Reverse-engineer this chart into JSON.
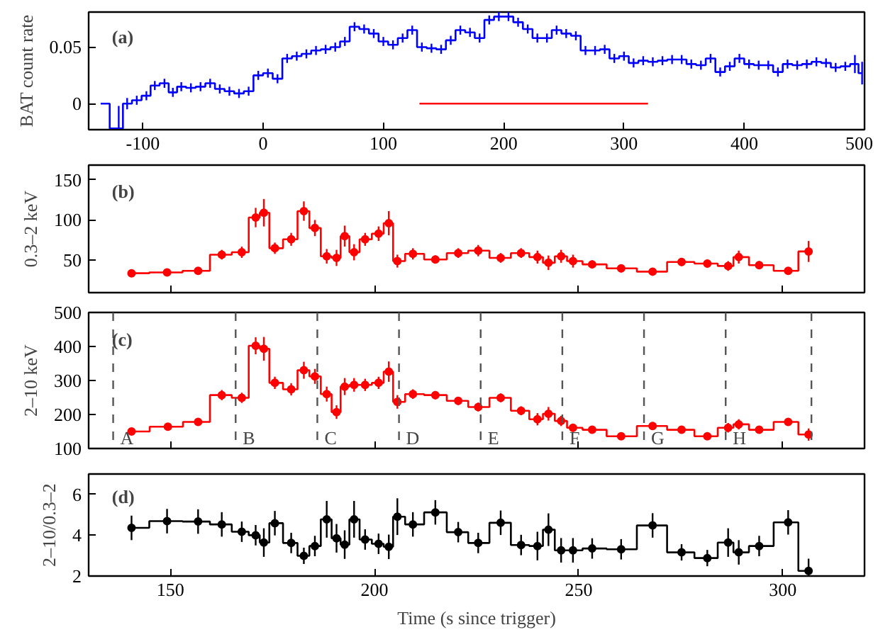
{
  "chart_data": [
    {
      "type": "step",
      "ylabel": "BAT count rate",
      "annotations": [
        "(a)"
      ],
      "marker": "none",
      "xlim": [
        -145,
        500
      ],
      "xticks": [
        -100,
        0,
        100,
        200,
        300,
        400,
        500
      ],
      "ylim": [
        -0.023,
        0.081
      ],
      "yticks": [
        0,
        0.05
      ],
      "x": [
        -135,
        -120,
        -113,
        -105,
        -97,
        -90,
        -82,
        -75,
        -68,
        -60,
        -52,
        -44,
        -36,
        -28,
        -20,
        -12,
        -4,
        4,
        12,
        20,
        28,
        36,
        44,
        52,
        60,
        68,
        76,
        84,
        92,
        100,
        108,
        116,
        124,
        132,
        140,
        148,
        156,
        164,
        172,
        180,
        188,
        196,
        204,
        212,
        220,
        228,
        236,
        244,
        252,
        260,
        268,
        276,
        284,
        292,
        300,
        308,
        316,
        324,
        332,
        340,
        348,
        356,
        364,
        372,
        380,
        388,
        396,
        404,
        412,
        420,
        428,
        436,
        444,
        452,
        460,
        468,
        476,
        484,
        492,
        498
      ],
      "series": [
        {
          "color": "#0000ff",
          "values": [
            0,
            -0.022,
            0,
            0.003,
            0.007,
            0.016,
            0.018,
            0.01,
            0.015,
            0.014,
            0.015,
            0.018,
            0.013,
            0.011,
            0.009,
            0.011,
            0.025,
            0.027,
            0.022,
            0.04,
            0.042,
            0.044,
            0.047,
            0.048,
            0.05,
            0.055,
            0.068,
            0.066,
            0.062,
            0.055,
            0.052,
            0.058,
            0.065,
            0.05,
            0.049,
            0.048,
            0.056,
            0.065,
            0.063,
            0.058,
            0.074,
            0.077,
            0.077,
            0.072,
            0.066,
            0.058,
            0.058,
            0.065,
            0.062,
            0.06,
            0.047,
            0.047,
            0.048,
            0.04,
            0.042,
            0.036,
            0.038,
            0.037,
            0.038,
            0.039,
            0.039,
            0.035,
            0.034,
            0.04,
            0.028,
            0.033,
            0.04,
            0.035,
            0.034,
            0.034,
            0.028,
            0.035,
            0.034,
            0.035,
            0.037,
            0.036,
            0.032,
            0.033,
            0.035,
            0.027
          ],
          "errors": [
            null,
            0.02,
            0.005,
            0.004,
            0.004,
            0.004,
            0.004,
            0.004,
            0.004,
            0.004,
            0.004,
            0.004,
            0.004,
            0.004,
            0.004,
            0.004,
            0.004,
            0.004,
            0.004,
            0.004,
            0.004,
            0.004,
            0.004,
            0.004,
            0.004,
            0.004,
            0.004,
            0.004,
            0.004,
            0.004,
            0.004,
            0.004,
            0.004,
            0.004,
            0.004,
            0.004,
            0.004,
            0.004,
            0.004,
            0.004,
            0.004,
            0.004,
            0.004,
            0.004,
            0.004,
            0.004,
            0.004,
            0.004,
            0.004,
            0.004,
            0.004,
            0.004,
            0.004,
            0.004,
            0.004,
            0.004,
            0.004,
            0.004,
            0.004,
            0.004,
            0.004,
            0.004,
            0.004,
            0.004,
            0.004,
            0.004,
            0.004,
            0.004,
            0.004,
            0.004,
            0.004,
            0.004,
            0.004,
            0.004,
            0.004,
            0.004,
            0.004,
            0.004,
            0.008,
            0.01
          ]
        },
        {
          "type": "line",
          "color": "#ff0000",
          "x": [
            130,
            320
          ],
          "values": [
            0,
            0
          ]
        }
      ]
    },
    {
      "type": "step",
      "ylabel": "0.3–2 keV",
      "annotations": [
        "(b)"
      ],
      "marker": "circle",
      "tick_labels": "y",
      "xlim": [
        130,
        320
      ],
      "xticks": [
        150,
        200,
        250,
        300
      ],
      "ylim": [
        10,
        168
      ],
      "yticks": [
        50,
        100,
        150
      ],
      "x": [
        140.5,
        149.2,
        156.8,
        162.6,
        167.5,
        170.9,
        172.9,
        175.6,
        179.6,
        182.7,
        185.4,
        188.3,
        190.7,
        192.7,
        195,
        197.7,
        201,
        203.5,
        205.6,
        209.4,
        214.9,
        220.5,
        225.4,
        230.9,
        235.9,
        239.9,
        242.6,
        245.7,
        248.6,
        253.3,
        260.4,
        268.1,
        275.2,
        281.5,
        286.6,
        289.2,
        294.2,
        301.3,
        306.3
      ],
      "series": [
        {
          "color": "#ff0000",
          "values": [
            34,
            35,
            37,
            57,
            60,
            103,
            109,
            65,
            76,
            111,
            90,
            55,
            53,
            80,
            60,
            76,
            83,
            96,
            49,
            58,
            51,
            59,
            62,
            53,
            59,
            54,
            47,
            55,
            49,
            45,
            40,
            36,
            48,
            46,
            43,
            54,
            44,
            37,
            61
          ],
          "errors": [
            3,
            3,
            4,
            6,
            7,
            12,
            17,
            7,
            8,
            12,
            10,
            9,
            10,
            13,
            10,
            8,
            9,
            15,
            8,
            7,
            5,
            6,
            7,
            6,
            6,
            8,
            9,
            8,
            8,
            5,
            5,
            4,
            5,
            5,
            6,
            8,
            5,
            4,
            13
          ]
        }
      ]
    },
    {
      "type": "step",
      "ylabel": "2–10 keV",
      "annotations": [
        "(c)"
      ],
      "marker": "circle",
      "tick_labels": "y",
      "xlim": [
        130,
        320
      ],
      "xticks": [
        150,
        200,
        250,
        300
      ],
      "ylim": [
        100,
        500
      ],
      "yticks": [
        100,
        200,
        300,
        400,
        500
      ],
      "ref_lines": [
        {
          "axis": "x",
          "value": 136,
          "label": "A",
          "color": "#555555",
          "line_style": "dashed"
        },
        {
          "axis": "x",
          "value": 166,
          "label": "B",
          "color": "#555555",
          "line_style": "dashed"
        },
        {
          "axis": "x",
          "value": 186,
          "label": "C",
          "color": "#555555",
          "line_style": "dashed"
        },
        {
          "axis": "x",
          "value": 206,
          "label": "D",
          "color": "#555555",
          "line_style": "dashed"
        },
        {
          "axis": "x",
          "value": 226,
          "label": "E",
          "color": "#555555",
          "line_style": "dashed"
        },
        {
          "axis": "x",
          "value": 246,
          "label": "F",
          "color": "#555555",
          "line_style": "dashed"
        },
        {
          "axis": "x",
          "value": 266,
          "label": "G",
          "color": "#555555",
          "line_style": "dashed"
        },
        {
          "axis": "x",
          "value": 286,
          "label": "H",
          "color": "#555555",
          "line_style": "dashed"
        },
        {
          "axis": "x",
          "value": 307,
          "color": "#555555",
          "line_style": "dashed"
        }
      ],
      "x": [
        140.5,
        149.4,
        156.8,
        162.6,
        167.5,
        170.9,
        172.9,
        175.6,
        179.6,
        182.7,
        185.4,
        188.3,
        190.7,
        192.7,
        195,
        197.7,
        201,
        203.5,
        205.6,
        209.4,
        214.9,
        220.5,
        225.4,
        230.9,
        235.9,
        239.9,
        242.6,
        245.7,
        248.6,
        253.3,
        260.4,
        268.1,
        275.2,
        281.5,
        286.6,
        289.2,
        294.2,
        301.3,
        306.3
      ],
      "series": [
        {
          "color": "#ff0000",
          "values": [
            150,
            164,
            178,
            257,
            249,
            402,
            393,
            293,
            274,
            330,
            312,
            260,
            207,
            282,
            287,
            287,
            293,
            326,
            237,
            260,
            257,
            240,
            222,
            249,
            211,
            186,
            202,
            181,
            161,
            155,
            136,
            166,
            155,
            136,
            161,
            171,
            155,
            178,
            141
          ],
          "errors": [
            6,
            7,
            8,
            15,
            15,
            25,
            35,
            18,
            18,
            25,
            22,
            22,
            20,
            25,
            20,
            18,
            18,
            30,
            20,
            14,
            12,
            12,
            13,
            13,
            13,
            18,
            20,
            15,
            12,
            9,
            8,
            8,
            9,
            8,
            14,
            15,
            10,
            8,
            18
          ]
        }
      ]
    },
    {
      "type": "step",
      "ylabel": "2–10/0.3–2",
      "xlabel": "Time (s since trigger)",
      "annotations": [
        "(d)"
      ],
      "marker": "circle",
      "xlim": [
        130,
        320
      ],
      "xticks": [
        150,
        200,
        250,
        300
      ],
      "ylim": [
        2,
        7
      ],
      "yticks": [
        2,
        4,
        6
      ],
      "x": [
        140.5,
        149.2,
        156.8,
        162.6,
        167.5,
        170.9,
        172.9,
        175.6,
        179.6,
        182.7,
        185.4,
        188.3,
        190.7,
        192.7,
        195,
        197.7,
        201,
        203.5,
        205.6,
        209.4,
        214.9,
        220.5,
        225.4,
        230.9,
        235.9,
        239.9,
        242.6,
        245.7,
        248.6,
        253.3,
        260.4,
        268.1,
        275.2,
        281.5,
        286.6,
        289.2,
        294.2,
        301.3,
        306.3
      ],
      "series": [
        {
          "color": "#000000",
          "values": [
            4.36,
            4.69,
            4.67,
            4.53,
            4.17,
            4.0,
            3.64,
            4.59,
            3.62,
            2.99,
            3.47,
            4.78,
            3.85,
            3.54,
            4.78,
            3.79,
            3.58,
            3.43,
            4.91,
            4.53,
            5.12,
            4.15,
            3.62,
            4.61,
            3.52,
            3.47,
            4.27,
            3.26,
            3.26,
            3.35,
            3.31,
            4.48,
            3.16,
            2.88,
            3.64,
            3.16,
            3.47,
            4.63,
            2.25
          ],
          "errors": [
            0.6,
            0.6,
            0.6,
            0.6,
            0.5,
            0.5,
            0.7,
            0.6,
            0.5,
            0.4,
            0.5,
            0.9,
            0.7,
            0.7,
            0.9,
            0.5,
            0.5,
            0.6,
            0.9,
            0.6,
            0.6,
            0.5,
            0.5,
            0.6,
            0.5,
            0.7,
            0.8,
            0.6,
            0.6,
            0.5,
            0.5,
            0.6,
            0.4,
            0.4,
            0.7,
            0.6,
            0.5,
            0.6,
            0.6
          ]
        }
      ]
    }
  ]
}
